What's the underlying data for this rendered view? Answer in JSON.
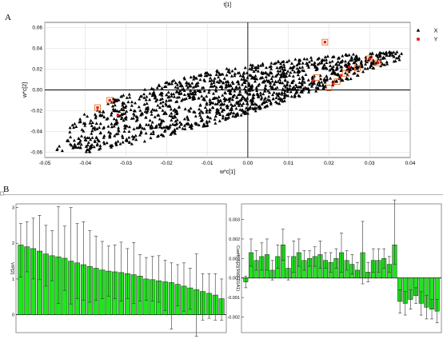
{
  "panel_labels": {
    "a": "A",
    "b": "B"
  },
  "chart_data": [
    {
      "type": "scatter",
      "title": "t[1]",
      "xlabel": "w*c[1]",
      "ylabel": "w*c[2]",
      "xlim": [
        -0.05,
        0.04
      ],
      "ylim": [
        -0.065,
        0.065
      ],
      "x_ticks": [
        "-0.05",
        "-0.04",
        "-0.03",
        "-0.02",
        "-0.01",
        "0.00",
        "0.01",
        "0.02",
        "0.03",
        "0.04"
      ],
      "y_ticks": [
        "0.06",
        "0.04",
        "0.02",
        "0.00",
        "-0.02",
        "-0.04",
        "-0.06"
      ],
      "grid": true,
      "legend_position": "right",
      "legend": [
        {
          "label": "X",
          "marker": "triangle",
          "color": "#000000"
        },
        {
          "label": "Y",
          "marker": "square",
          "color": "#e8130f"
        }
      ],
      "series": [
        {
          "name": "Y",
          "points": [
            [
              0.019,
              0.046
            ],
            [
              0.03,
              0.03
            ],
            [
              0.032,
              0.026
            ],
            [
              -0.037,
              -0.017
            ],
            [
              -0.034,
              -0.01
            ],
            [
              -0.032,
              -0.024
            ],
            [
              0.016,
              0.009
            ],
            [
              0.021,
              0.006
            ],
            [
              0.023,
              0.014
            ],
            [
              0.025,
              0.022
            ]
          ]
        }
      ],
      "highlighted_points": [
        [
          0.019,
          0.046
        ],
        [
          0.03,
          0.03
        ],
        [
          0.032,
          0.026
        ],
        [
          -0.037,
          -0.017
        ],
        [
          -0.034,
          -0.01
        ],
        [
          0.017,
          0.012
        ],
        [
          0.022,
          0.008
        ],
        [
          0.024,
          0.016
        ],
        [
          0.027,
          0.021
        ],
        [
          0.02,
          0.002
        ]
      ]
    },
    {
      "type": "bar",
      "ylabel": "VIP[2]",
      "ylim": [
        -0.5,
        3.1
      ],
      "y_ticks": [
        "3",
        "2",
        "1",
        "0"
      ],
      "values": [
        1.95,
        1.9,
        1.85,
        1.78,
        1.7,
        1.65,
        1.62,
        1.58,
        1.5,
        1.45,
        1.4,
        1.35,
        1.3,
        1.25,
        1.22,
        1.2,
        1.18,
        1.15,
        1.12,
        1.08,
        1.0,
        0.98,
        0.95,
        0.92,
        0.9,
        0.85,
        0.8,
        0.75,
        0.7,
        0.65,
        0.6,
        0.55,
        0.45
      ],
      "error_plus": [
        0.6,
        0.7,
        0.85,
        1.0,
        0.8,
        0.7,
        1.4,
        0.9,
        1.5,
        1.1,
        1.2,
        1.0,
        0.9,
        0.8,
        0.7,
        0.75,
        0.85,
        0.7,
        0.9,
        0.6,
        0.6,
        0.65,
        0.7,
        0.6,
        0.55,
        0.55,
        0.65,
        0.55,
        1.0,
        0.5,
        0.55,
        0.6,
        0.55
      ],
      "error_minus": [
        0.9,
        0.7,
        0.85,
        0.8,
        0.9,
        0.7,
        1.3,
        0.9,
        1.2,
        1.0,
        1.0,
        1.0,
        0.9,
        0.8,
        0.7,
        0.75,
        0.8,
        0.7,
        0.8,
        0.7,
        0.6,
        0.6,
        0.6,
        0.8,
        1.3,
        0.6,
        0.7,
        0.6,
        1.3,
        0.8,
        0.7,
        0.7,
        0.6
      ]
    },
    {
      "type": "bar",
      "ylabel": "CoeffCS[2](SM2 D1A1)",
      "ylim": [
        -0.0028,
        0.0038
      ],
      "y_ticks": [
        "0.003",
        "0.002",
        "0.001",
        "0.000",
        "-0.001",
        "-0.002"
      ],
      "values": [
        -0.0002,
        0.0013,
        0.0009,
        0.0011,
        0.0012,
        0.0004,
        0.0011,
        0.0017,
        0.0005,
        0.0011,
        0.0013,
        0.0009,
        0.001,
        0.0011,
        0.0012,
        0.0009,
        0.0008,
        0.001,
        0.0013,
        0.0009,
        0.0007,
        0.0004,
        0.0013,
        0.0003,
        0.0009,
        0.0009,
        0.001,
        0.0007,
        0.0017,
        -0.0012,
        -0.0013,
        -0.0011,
        -0.0009,
        -0.0013,
        -0.0015,
        -0.0016,
        -0.0017
      ],
      "error_plus": [
        0.0003,
        0.0007,
        0.0005,
        0.0007,
        0.0008,
        0.0005,
        0.0006,
        0.0008,
        0.0006,
        0.0008,
        0.0007,
        0.0005,
        0.0004,
        0.0005,
        0.0007,
        0.0004,
        0.0005,
        0.0005,
        0.001,
        0.0005,
        0.0005,
        0.0004,
        0.0016,
        0.0005,
        0.0006,
        0.0006,
        0.0005,
        0.0004,
        0.0023,
        0.0006,
        0.0006,
        0.0005,
        0.0004,
        0.0006,
        0.0006,
        0.0005,
        0.0006
      ],
      "error_minus": [
        0.0003,
        0.0007,
        0.0005,
        0.0007,
        0.0008,
        0.0005,
        0.0006,
        0.0008,
        0.0006,
        0.0008,
        0.0007,
        0.0005,
        0.0004,
        0.0005,
        0.0007,
        0.0004,
        0.0005,
        0.0005,
        0.001,
        0.0005,
        0.0005,
        0.0004,
        0.0016,
        0.0005,
        0.0006,
        0.0006,
        0.0005,
        0.0004,
        0.001,
        0.0006,
        0.0006,
        0.0005,
        0.0004,
        0.0006,
        0.0006,
        0.0005,
        0.0006
      ]
    }
  ]
}
